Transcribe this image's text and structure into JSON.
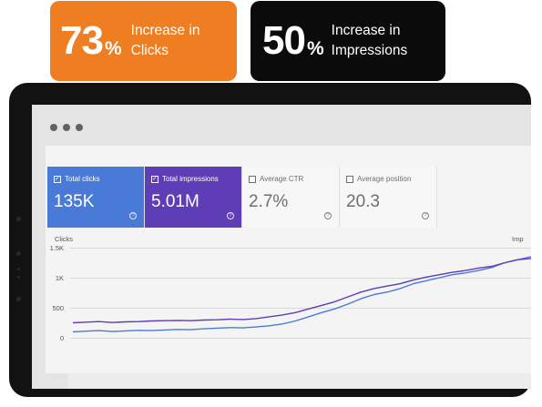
{
  "badges": [
    {
      "value": "73",
      "unit": "%",
      "text_line1": "Increase in",
      "text_line2": "Clicks",
      "color": "#ef7d22"
    },
    {
      "value": "50",
      "unit": "%",
      "text_line1": "Increase in",
      "text_line2": "Impressions",
      "color": "#0b0b0b"
    }
  ],
  "cards": [
    {
      "label": "Total clicks",
      "value": "135K",
      "checked": true,
      "color": "#4a7ad8"
    },
    {
      "label": "Total impressions",
      "value": "5.01M",
      "checked": true,
      "color": "#5f3db7"
    },
    {
      "label": "Average CTR",
      "value": "2.7%",
      "checked": false
    },
    {
      "label": "Average position",
      "value": "20.3",
      "checked": false
    }
  ],
  "chart": {
    "left_axis_title": "Clicks",
    "right_axis_title": "Imp",
    "y_ticks": [
      "1.5K",
      "1K",
      "500",
      "0"
    ]
  },
  "chart_data": {
    "type": "line",
    "ylabel": "Clicks",
    "ylim": [
      0,
      1500
    ],
    "series": [
      {
        "name": "Total clicks",
        "color": "#4a7ad8",
        "values": [
          100,
          110,
          120,
          105,
          115,
          125,
          120,
          130,
          140,
          135,
          150,
          160,
          170,
          165,
          180,
          200,
          230,
          280,
          350,
          420,
          480,
          560,
          650,
          720,
          760,
          820,
          900,
          950,
          1000,
          1050,
          1080,
          1120,
          1170,
          1250,
          1300,
          1350
        ]
      },
      {
        "name": "Total impressions",
        "color": "#5f3db7",
        "values": [
          250,
          260,
          270,
          255,
          265,
          270,
          280,
          285,
          290,
          285,
          295,
          300,
          310,
          305,
          320,
          350,
          380,
          420,
          480,
          540,
          600,
          680,
          760,
          820,
          860,
          900,
          960,
          1010,
          1050,
          1090,
          1120,
          1160,
          1190,
          1250,
          1300,
          1320
        ]
      }
    ]
  }
}
